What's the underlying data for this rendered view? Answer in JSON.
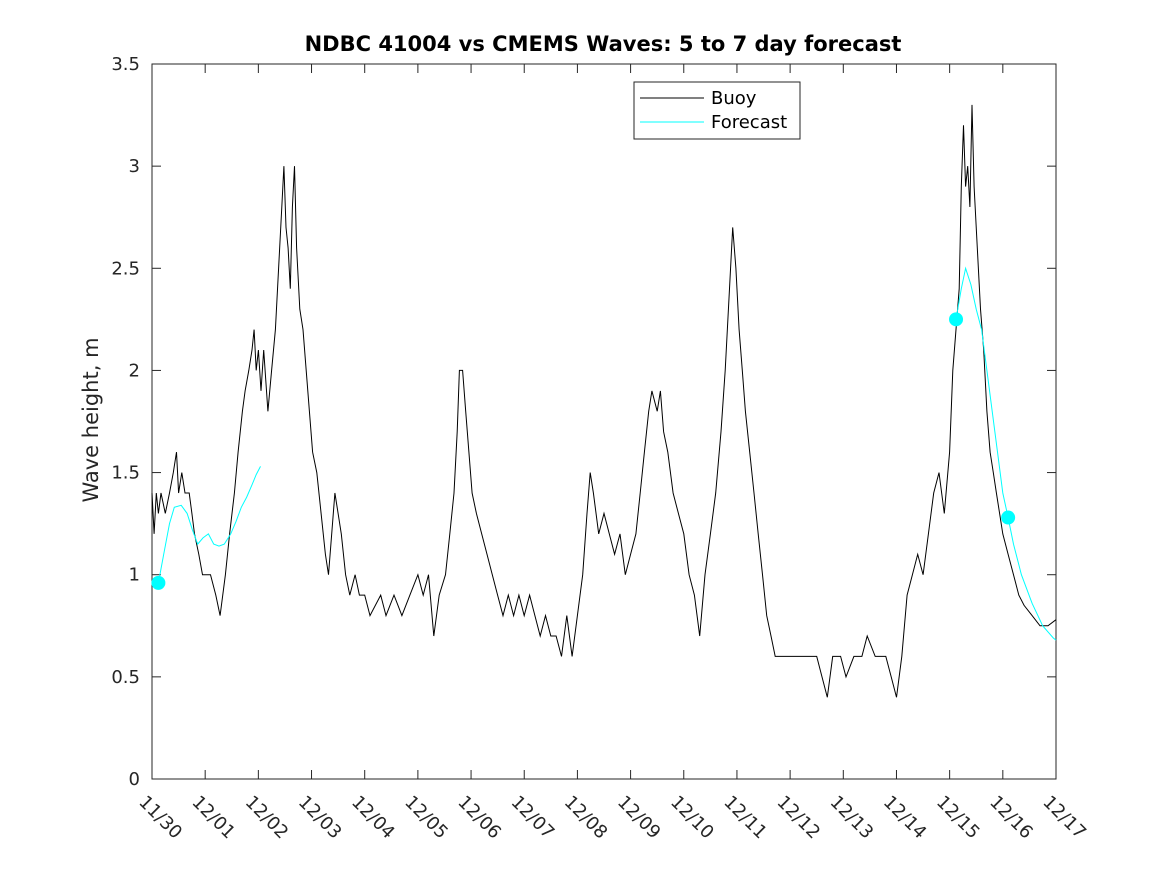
{
  "chart_data": {
    "type": "line",
    "title": "NDBC 41004 vs CMEMS Waves: 5 to 7 day forecast",
    "xlabel": "",
    "ylabel": "Wave height, m",
    "xlim": [
      0,
      17
    ],
    "ylim": [
      0,
      3.5
    ],
    "x_ticks": [
      0,
      1,
      2,
      3,
      4,
      5,
      6,
      7,
      8,
      9,
      10,
      11,
      12,
      13,
      14,
      15,
      16,
      17
    ],
    "x_tick_labels": [
      "11/30",
      "12/01",
      "12/02",
      "12/03",
      "12/04",
      "12/05",
      "12/06",
      "12/07",
      "12/08",
      "12/09",
      "12/10",
      "12/11",
      "12/12",
      "12/13",
      "12/14",
      "12/15",
      "12/16",
      "12/17"
    ],
    "y_ticks": [
      0,
      0.5,
      1,
      1.5,
      2,
      2.5,
      3,
      3.5
    ],
    "y_tick_labels": [
      "0",
      "0.5",
      "1",
      "1.5",
      "2",
      "2.5",
      "3",
      "3.5"
    ],
    "x_units": "days since 11/30",
    "grid": false,
    "legend": {
      "placement": "top-center"
    },
    "series": [
      {
        "name": "Buoy",
        "color": "#000000",
        "points": [
          [
            0.0,
            1.4
          ],
          [
            0.04,
            1.2
          ],
          [
            0.08,
            1.4
          ],
          [
            0.12,
            1.3
          ],
          [
            0.17,
            1.4
          ],
          [
            0.25,
            1.3
          ],
          [
            0.33,
            1.4
          ],
          [
            0.4,
            1.5
          ],
          [
            0.46,
            1.6
          ],
          [
            0.5,
            1.4
          ],
          [
            0.56,
            1.5
          ],
          [
            0.62,
            1.4
          ],
          [
            0.7,
            1.4
          ],
          [
            0.75,
            1.3
          ],
          [
            0.8,
            1.2
          ],
          [
            0.88,
            1.1
          ],
          [
            0.95,
            1.0
          ],
          [
            1.1,
            1.0
          ],
          [
            1.2,
            0.9
          ],
          [
            1.28,
            0.8
          ],
          [
            1.38,
            1.0
          ],
          [
            1.46,
            1.2
          ],
          [
            1.55,
            1.4
          ],
          [
            1.62,
            1.6
          ],
          [
            1.7,
            1.8
          ],
          [
            1.75,
            1.9
          ],
          [
            1.82,
            2.0
          ],
          [
            1.88,
            2.1
          ],
          [
            1.92,
            2.2
          ],
          [
            1.96,
            2.0
          ],
          [
            2.0,
            2.1
          ],
          [
            2.05,
            1.9
          ],
          [
            2.1,
            2.1
          ],
          [
            2.18,
            1.8
          ],
          [
            2.25,
            2.0
          ],
          [
            2.32,
            2.2
          ],
          [
            2.38,
            2.5
          ],
          [
            2.44,
            2.8
          ],
          [
            2.48,
            3.0
          ],
          [
            2.52,
            2.7
          ],
          [
            2.56,
            2.6
          ],
          [
            2.6,
            2.4
          ],
          [
            2.64,
            2.8
          ],
          [
            2.68,
            3.0
          ],
          [
            2.72,
            2.6
          ],
          [
            2.78,
            2.3
          ],
          [
            2.84,
            2.2
          ],
          [
            2.9,
            2.0
          ],
          [
            2.96,
            1.8
          ],
          [
            3.02,
            1.6
          ],
          [
            3.1,
            1.5
          ],
          [
            3.18,
            1.3
          ],
          [
            3.26,
            1.1
          ],
          [
            3.32,
            1.0
          ],
          [
            3.38,
            1.2
          ],
          [
            3.44,
            1.4
          ],
          [
            3.5,
            1.3
          ],
          [
            3.56,
            1.2
          ],
          [
            3.64,
            1.0
          ],
          [
            3.72,
            0.9
          ],
          [
            3.82,
            1.0
          ],
          [
            3.9,
            0.9
          ],
          [
            4.0,
            0.9
          ],
          [
            4.1,
            0.8
          ],
          [
            4.3,
            0.9
          ],
          [
            4.4,
            0.8
          ],
          [
            4.55,
            0.9
          ],
          [
            4.7,
            0.8
          ],
          [
            4.85,
            0.9
          ],
          [
            5.0,
            1.0
          ],
          [
            5.1,
            0.9
          ],
          [
            5.2,
            1.0
          ],
          [
            5.3,
            0.7
          ],
          [
            5.4,
            0.9
          ],
          [
            5.52,
            1.0
          ],
          [
            5.6,
            1.2
          ],
          [
            5.68,
            1.4
          ],
          [
            5.74,
            1.7
          ],
          [
            5.78,
            2.0
          ],
          [
            5.84,
            2.0
          ],
          [
            5.9,
            1.8
          ],
          [
            5.96,
            1.6
          ],
          [
            6.02,
            1.4
          ],
          [
            6.1,
            1.3
          ],
          [
            6.2,
            1.2
          ],
          [
            6.3,
            1.1
          ],
          [
            6.4,
            1.0
          ],
          [
            6.5,
            0.9
          ],
          [
            6.6,
            0.8
          ],
          [
            6.7,
            0.9
          ],
          [
            6.8,
            0.8
          ],
          [
            6.9,
            0.9
          ],
          [
            7.0,
            0.8
          ],
          [
            7.1,
            0.9
          ],
          [
            7.2,
            0.8
          ],
          [
            7.3,
            0.7
          ],
          [
            7.4,
            0.8
          ],
          [
            7.5,
            0.7
          ],
          [
            7.6,
            0.7
          ],
          [
            7.7,
            0.6
          ],
          [
            7.8,
            0.8
          ],
          [
            7.9,
            0.6
          ],
          [
            8.0,
            0.8
          ],
          [
            8.1,
            1.0
          ],
          [
            8.18,
            1.3
          ],
          [
            8.24,
            1.5
          ],
          [
            8.3,
            1.4
          ],
          [
            8.4,
            1.2
          ],
          [
            8.5,
            1.3
          ],
          [
            8.6,
            1.2
          ],
          [
            8.7,
            1.1
          ],
          [
            8.8,
            1.2
          ],
          [
            8.9,
            1.0
          ],
          [
            9.0,
            1.1
          ],
          [
            9.1,
            1.2
          ],
          [
            9.18,
            1.4
          ],
          [
            9.26,
            1.6
          ],
          [
            9.34,
            1.8
          ],
          [
            9.4,
            1.9
          ],
          [
            9.5,
            1.8
          ],
          [
            9.56,
            1.9
          ],
          [
            9.62,
            1.7
          ],
          [
            9.7,
            1.6
          ],
          [
            9.8,
            1.4
          ],
          [
            9.9,
            1.3
          ],
          [
            10.0,
            1.2
          ],
          [
            10.1,
            1.0
          ],
          [
            10.2,
            0.9
          ],
          [
            10.3,
            0.7
          ],
          [
            10.4,
            1.0
          ],
          [
            10.5,
            1.2
          ],
          [
            10.6,
            1.4
          ],
          [
            10.7,
            1.7
          ],
          [
            10.78,
            2.0
          ],
          [
            10.86,
            2.4
          ],
          [
            10.92,
            2.7
          ],
          [
            10.98,
            2.5
          ],
          [
            11.04,
            2.2
          ],
          [
            11.1,
            2.0
          ],
          [
            11.16,
            1.8
          ],
          [
            11.24,
            1.6
          ],
          [
            11.32,
            1.4
          ],
          [
            11.4,
            1.2
          ],
          [
            11.48,
            1.0
          ],
          [
            11.56,
            0.8
          ],
          [
            11.64,
            0.7
          ],
          [
            11.72,
            0.6
          ],
          [
            12.0,
            0.6
          ],
          [
            12.3,
            0.6
          ],
          [
            12.5,
            0.6
          ],
          [
            12.6,
            0.5
          ],
          [
            12.7,
            0.4
          ],
          [
            12.8,
            0.6
          ],
          [
            12.95,
            0.6
          ],
          [
            13.05,
            0.5
          ],
          [
            13.2,
            0.6
          ],
          [
            13.35,
            0.6
          ],
          [
            13.45,
            0.7
          ],
          [
            13.6,
            0.6
          ],
          [
            13.8,
            0.6
          ],
          [
            13.9,
            0.5
          ],
          [
            14.0,
            0.4
          ],
          [
            14.1,
            0.6
          ],
          [
            14.2,
            0.9
          ],
          [
            14.3,
            1.0
          ],
          [
            14.4,
            1.1
          ],
          [
            14.5,
            1.0
          ],
          [
            14.6,
            1.2
          ],
          [
            14.7,
            1.4
          ],
          [
            14.8,
            1.5
          ],
          [
            14.9,
            1.3
          ],
          [
            15.0,
            1.6
          ],
          [
            15.06,
            2.0
          ],
          [
            15.12,
            2.2
          ],
          [
            15.18,
            2.4
          ],
          [
            15.22,
            2.9
          ],
          [
            15.26,
            3.2
          ],
          [
            15.3,
            2.9
          ],
          [
            15.34,
            3.0
          ],
          [
            15.38,
            2.8
          ],
          [
            15.42,
            3.3
          ],
          [
            15.46,
            2.9
          ],
          [
            15.52,
            2.6
          ],
          [
            15.58,
            2.3
          ],
          [
            15.64,
            2.1
          ],
          [
            15.7,
            1.8
          ],
          [
            15.76,
            1.6
          ],
          [
            15.82,
            1.5
          ],
          [
            15.88,
            1.4
          ],
          [
            15.94,
            1.3
          ],
          [
            16.0,
            1.2
          ],
          [
            16.1,
            1.1
          ],
          [
            16.2,
            1.0
          ],
          [
            16.3,
            0.9
          ],
          [
            16.4,
            0.85
          ],
          [
            16.55,
            0.8
          ],
          [
            16.7,
            0.75
          ],
          [
            16.85,
            0.75
          ],
          [
            17.0,
            0.78
          ]
        ]
      },
      {
        "name": "Forecast",
        "color": "#00ffff",
        "points": [
          [
            0.12,
            0.96
          ],
          [
            0.22,
            1.1
          ],
          [
            0.33,
            1.25
          ],
          [
            0.42,
            1.33
          ],
          [
            0.55,
            1.34
          ],
          [
            0.66,
            1.3
          ],
          [
            0.76,
            1.22
          ],
          [
            0.86,
            1.15
          ],
          [
            0.96,
            1.18
          ],
          [
            1.06,
            1.2
          ],
          [
            1.16,
            1.15
          ],
          [
            1.26,
            1.14
          ],
          [
            1.36,
            1.15
          ],
          [
            1.48,
            1.2
          ],
          [
            1.58,
            1.26
          ],
          [
            1.68,
            1.33
          ],
          [
            1.78,
            1.38
          ],
          [
            1.88,
            1.44
          ],
          [
            1.96,
            1.49
          ],
          [
            2.04,
            1.53
          ]
        ],
        "segment2": [
          [
            15.12,
            2.25
          ],
          [
            15.22,
            2.4
          ],
          [
            15.3,
            2.5
          ],
          [
            15.4,
            2.42
          ],
          [
            15.5,
            2.3
          ],
          [
            15.6,
            2.2
          ],
          [
            15.7,
            2.0
          ],
          [
            15.8,
            1.8
          ],
          [
            15.9,
            1.6
          ],
          [
            16.0,
            1.4
          ],
          [
            16.1,
            1.28
          ],
          [
            16.2,
            1.15
          ],
          [
            16.35,
            1.0
          ],
          [
            16.55,
            0.86
          ],
          [
            16.75,
            0.75
          ],
          [
            16.95,
            0.69
          ],
          [
            17.0,
            0.68
          ]
        ]
      }
    ],
    "markers": [
      {
        "series": "Forecast",
        "x": 0.12,
        "y": 0.96
      },
      {
        "series": "Forecast",
        "x": 15.12,
        "y": 2.25
      },
      {
        "series": "Forecast",
        "x": 16.1,
        "y": 1.28
      }
    ]
  }
}
